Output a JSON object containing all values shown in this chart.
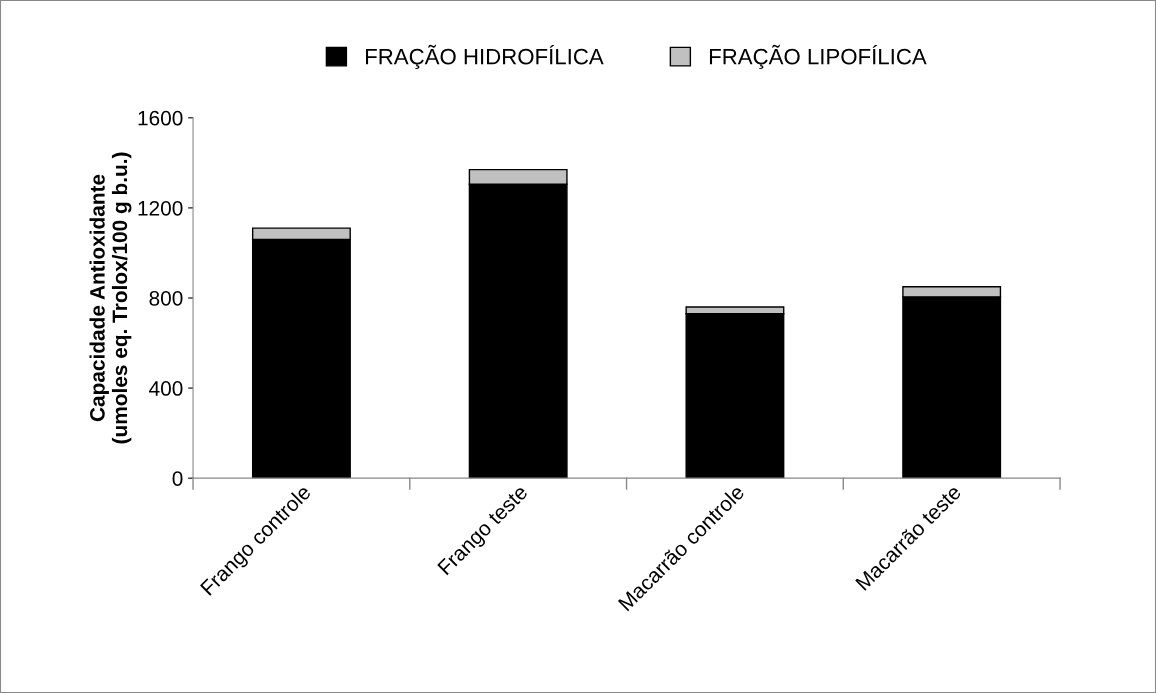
{
  "chart_data": {
    "type": "bar",
    "stacked": true,
    "ylabel": "Capacidade Antioxidante\n(umoles eq. Trolox/100 g b.u.)",
    "categories": [
      "Frango controle",
      "Frango teste",
      "Macarrão controle",
      "Macarrão teste"
    ],
    "series": [
      {
        "name": "FRAÇÃO HIDROFÍLICA",
        "color": "#000000",
        "values": [
          1060,
          1305,
          730,
          805
        ]
      },
      {
        "name": "FRAÇÃO LIPOFÍLICA",
        "color": "#c0c0c0",
        "values": [
          50,
          65,
          30,
          45
        ]
      }
    ],
    "ylim": [
      0,
      1600
    ],
    "yticks": [
      0,
      400,
      800,
      1200,
      1600
    ],
    "grid": false,
    "legend": "top"
  }
}
